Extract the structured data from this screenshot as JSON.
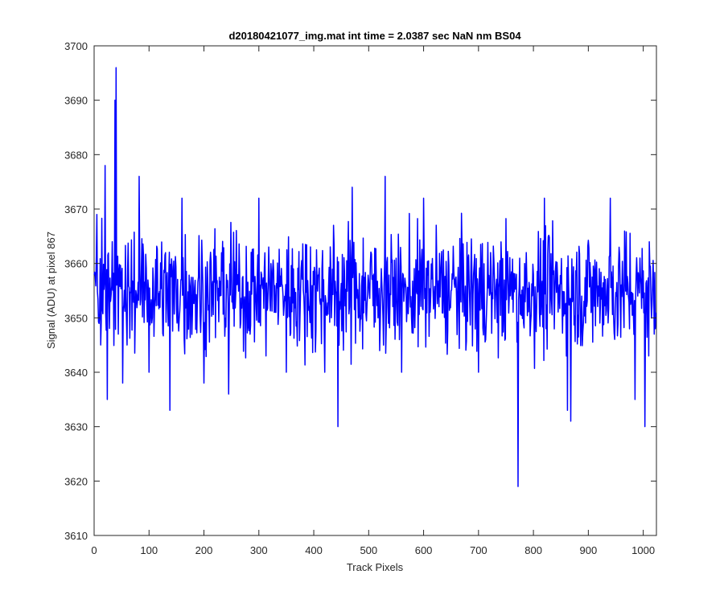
{
  "chart_data": {
    "type": "line",
    "title": "d20180421077_img.mat int time = 2.0387 sec  NaN nm BS04",
    "xlabel": "Track Pixels",
    "ylabel": "Signal (ADU) at pixel 867",
    "xlim": [
      0,
      1024
    ],
    "ylim": [
      3610,
      3700
    ],
    "xticks": [
      0,
      100,
      200,
      300,
      400,
      500,
      600,
      700,
      800,
      900,
      1000
    ],
    "yticks": [
      3610,
      3620,
      3630,
      3640,
      3650,
      3660,
      3670,
      3680,
      3690,
      3700
    ],
    "grid": false,
    "line_color": "#0000ff",
    "series": [
      {
        "baseline": 3655,
        "n_points": 1024,
        "notable_points": [
          {
            "x": 5,
            "y": 3669
          },
          {
            "x": 12,
            "y": 3645
          },
          {
            "x": 20,
            "y": 3678
          },
          {
            "x": 24,
            "y": 3635
          },
          {
            "x": 33,
            "y": 3664
          },
          {
            "x": 38,
            "y": 3690
          },
          {
            "x": 40,
            "y": 3696
          },
          {
            "x": 44,
            "y": 3647
          },
          {
            "x": 52,
            "y": 3638
          },
          {
            "x": 60,
            "y": 3645
          },
          {
            "x": 82,
            "y": 3676
          },
          {
            "x": 100,
            "y": 3640
          },
          {
            "x": 138,
            "y": 3633
          },
          {
            "x": 160,
            "y": 3672
          },
          {
            "x": 200,
            "y": 3638
          },
          {
            "x": 245,
            "y": 3636
          },
          {
            "x": 300,
            "y": 3672
          },
          {
            "x": 350,
            "y": 3640
          },
          {
            "x": 420,
            "y": 3640
          },
          {
            "x": 444,
            "y": 3630
          },
          {
            "x": 470,
            "y": 3674
          },
          {
            "x": 530,
            "y": 3676
          },
          {
            "x": 560,
            "y": 3640
          },
          {
            "x": 600,
            "y": 3672
          },
          {
            "x": 700,
            "y": 3640
          },
          {
            "x": 772,
            "y": 3619
          },
          {
            "x": 820,
            "y": 3672
          },
          {
            "x": 862,
            "y": 3633
          },
          {
            "x": 868,
            "y": 3631
          },
          {
            "x": 940,
            "y": 3672
          },
          {
            "x": 985,
            "y": 3635
          },
          {
            "x": 1003,
            "y": 3630
          },
          {
            "x": 1010,
            "y": 3643
          },
          {
            "x": 1020,
            "y": 3647
          }
        ]
      }
    ]
  }
}
